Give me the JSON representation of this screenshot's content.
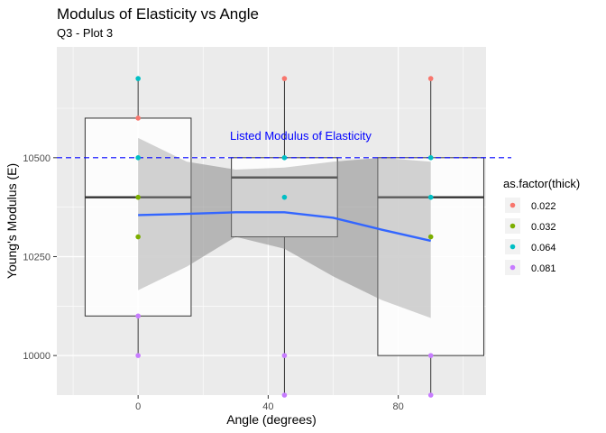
{
  "chart_data": {
    "type": "boxplot",
    "title": "Modulus of Elasticity vs Angle",
    "subtitle": "Q3 - Plot 3",
    "xlabel": "Angle (degrees)",
    "ylabel": "Young's Modulus (E)",
    "xlim": [
      -25,
      107
    ],
    "ylim": [
      9900,
      10780
    ],
    "x_ticks": [
      0,
      40,
      80
    ],
    "y_ticks": [
      10000,
      10250,
      10500
    ],
    "grid": true,
    "legend": {
      "title": "as.factor(thick)",
      "position": "right",
      "entries": [
        {
          "label": "0.022",
          "color": "#F8766D"
        },
        {
          "label": "0.032",
          "color": "#7CAE00"
        },
        {
          "label": "0.064",
          "color": "#00BFC4"
        },
        {
          "label": "0.081",
          "color": "#C77CFF"
        }
      ]
    },
    "boxes": [
      {
        "x": 0,
        "q1": 10100,
        "median": 10400,
        "q3": 10600,
        "whisker_low": 10000,
        "whisker_high": 10700
      },
      {
        "x": 45,
        "q1": 10300,
        "median": 10450,
        "q3": 10500,
        "whisker_low": 9900,
        "whisker_high": 10700
      },
      {
        "x": 90,
        "q1": 10000,
        "median": 10400,
        "q3": 10500,
        "whisker_low": 9900,
        "whisker_high": 10700
      }
    ],
    "points": [
      {
        "x": 0,
        "y": 10600,
        "thick": "0.022"
      },
      {
        "x": 0,
        "y": 10400,
        "thick": "0.032"
      },
      {
        "x": 0,
        "y": 10300,
        "thick": "0.032"
      },
      {
        "x": 0,
        "y": 10700,
        "thick": "0.064"
      },
      {
        "x": 0,
        "y": 10500,
        "thick": "0.064"
      },
      {
        "x": 0,
        "y": 10100,
        "thick": "0.081"
      },
      {
        "x": 0,
        "y": 10000,
        "thick": "0.081"
      },
      {
        "x": 45,
        "y": 10700,
        "thick": "0.022"
      },
      {
        "x": 45,
        "y": 10500,
        "thick": "0.064"
      },
      {
        "x": 45,
        "y": 10400,
        "thick": "0.064"
      },
      {
        "x": 45,
        "y": 10000,
        "thick": "0.081"
      },
      {
        "x": 45,
        "y": 9900,
        "thick": "0.081"
      },
      {
        "x": 90,
        "y": 10700,
        "thick": "0.022"
      },
      {
        "x": 90,
        "y": 10500,
        "thick": "0.064"
      },
      {
        "x": 90,
        "y": 10400,
        "thick": "0.064"
      },
      {
        "x": 90,
        "y": 10300,
        "thick": "0.032"
      },
      {
        "x": 90,
        "y": 10000,
        "thick": "0.081"
      },
      {
        "x": 90,
        "y": 9900,
        "thick": "0.081"
      }
    ],
    "smooth": {
      "color": "#3366FF",
      "x": [
        0,
        15,
        30,
        45,
        60,
        75,
        90
      ],
      "y": [
        10355,
        10358,
        10362,
        10362,
        10348,
        10318,
        10290
      ],
      "lo": [
        10165,
        10225,
        10300,
        10270,
        10200,
        10140,
        10095
      ],
      "hi": [
        10550,
        10490,
        10470,
        10475,
        10490,
        10500,
        10490
      ]
    },
    "reference_line": {
      "y": 10500,
      "color": "#0000FF",
      "label": "Listed Modulus of Elasticity",
      "label_x": 50,
      "label_y": 10545
    }
  }
}
